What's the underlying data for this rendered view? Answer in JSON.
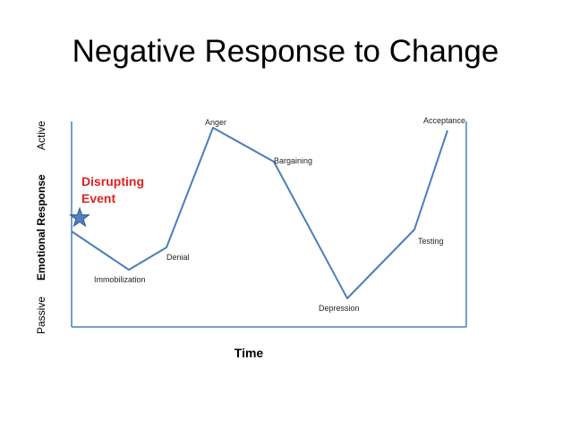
{
  "title": "Negative Response to Change",
  "y_axis": {
    "low_label": "Passive",
    "name": "Emotional Response",
    "high_label": "Active"
  },
  "x_axis": {
    "label": "Time"
  },
  "event": {
    "line1": "Disrupting",
    "line2": "Event",
    "color": "#e02020",
    "marker": "star-icon"
  },
  "stages": {
    "immobilization": "Immobilization",
    "denial": "Denial",
    "anger": "Anger",
    "bargaining": "Bargaining",
    "depression": "Depression",
    "testing": "Testing",
    "acceptance": "Acceptance"
  },
  "colors": {
    "line": "#4a7ebb",
    "axis": "#4a7ebb",
    "star_fill": "#4f81bd",
    "star_stroke": "#2c5a8f"
  }
}
